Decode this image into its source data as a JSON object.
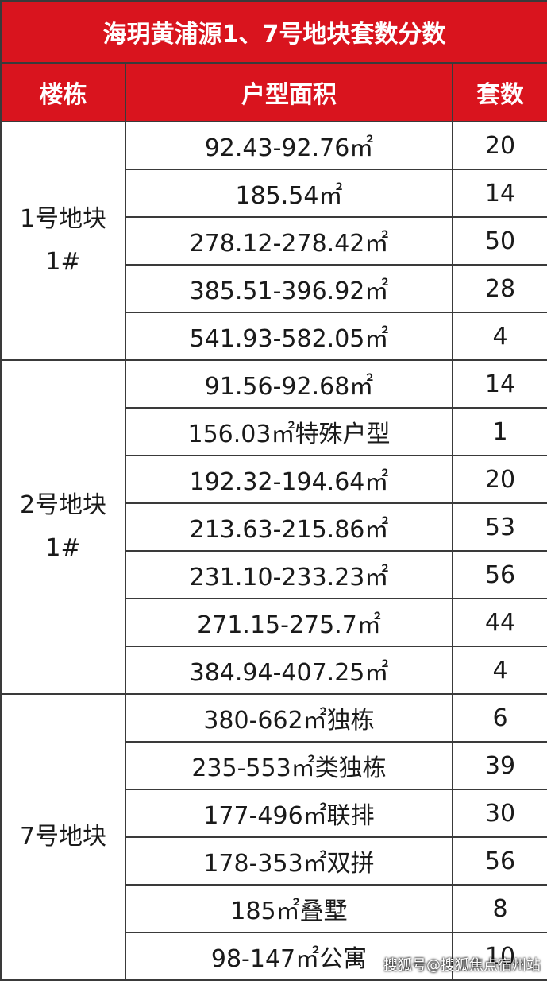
{
  "title": "海玥黄浦源1、7号地块套数分数",
  "columns": [
    "楼栋",
    "户型面积",
    "套数"
  ],
  "groups": [
    {
      "label": [
        "1号地块",
        "1#"
      ],
      "rows": [
        [
          "92.43-92.76㎡",
          "20"
        ],
        [
          "185.54㎡",
          "14"
        ],
        [
          "278.12-278.42㎡",
          "50"
        ],
        [
          "385.51-396.92㎡",
          "28"
        ],
        [
          "541.93-582.05㎡",
          "4"
        ]
      ]
    },
    {
      "label": [
        "2号地块",
        "1#"
      ],
      "rows": [
        [
          "91.56-92.68㎡",
          "14"
        ],
        [
          "156.03㎡特殊户型",
          "1"
        ],
        [
          "192.32-194.64㎡",
          "20"
        ],
        [
          "213.63-215.86㎡",
          "53"
        ],
        [
          "231.10-233.23㎡",
          "56"
        ],
        [
          "271.15-275.7㎡",
          "44"
        ],
        [
          "384.94-407.25㎡",
          "4"
        ]
      ]
    },
    {
      "label": [
        "7号地块"
      ],
      "rows": [
        [
          "380-662㎡独栋",
          "6"
        ],
        [
          "235-553㎡类独栋",
          "39"
        ],
        [
          "177-496㎡联排",
          "30"
        ],
        [
          "178-353㎡双拼",
          "56"
        ],
        [
          "185㎡叠墅",
          "8"
        ],
        [
          "98-147㎡公寓",
          "10"
        ]
      ]
    }
  ],
  "watermark": "搜狐号@搜狐焦点宿州站"
}
